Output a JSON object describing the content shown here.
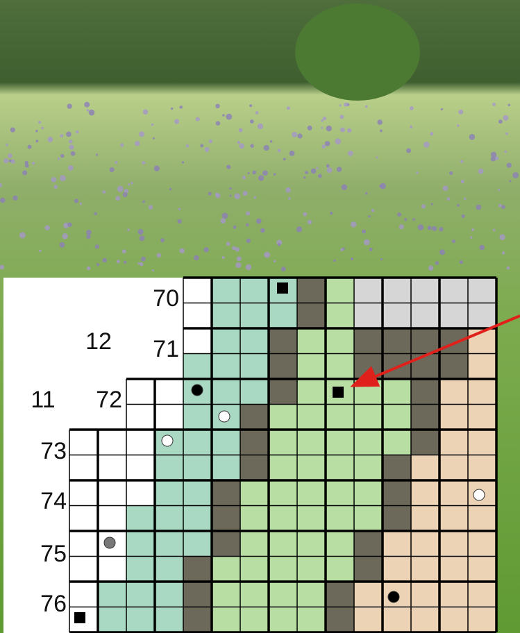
{
  "map": {
    "row_labels": [
      "70",
      "71",
      "72",
      "73",
      "74",
      "75",
      "76"
    ],
    "col_labels": [
      "11",
      "12"
    ]
  }
}
